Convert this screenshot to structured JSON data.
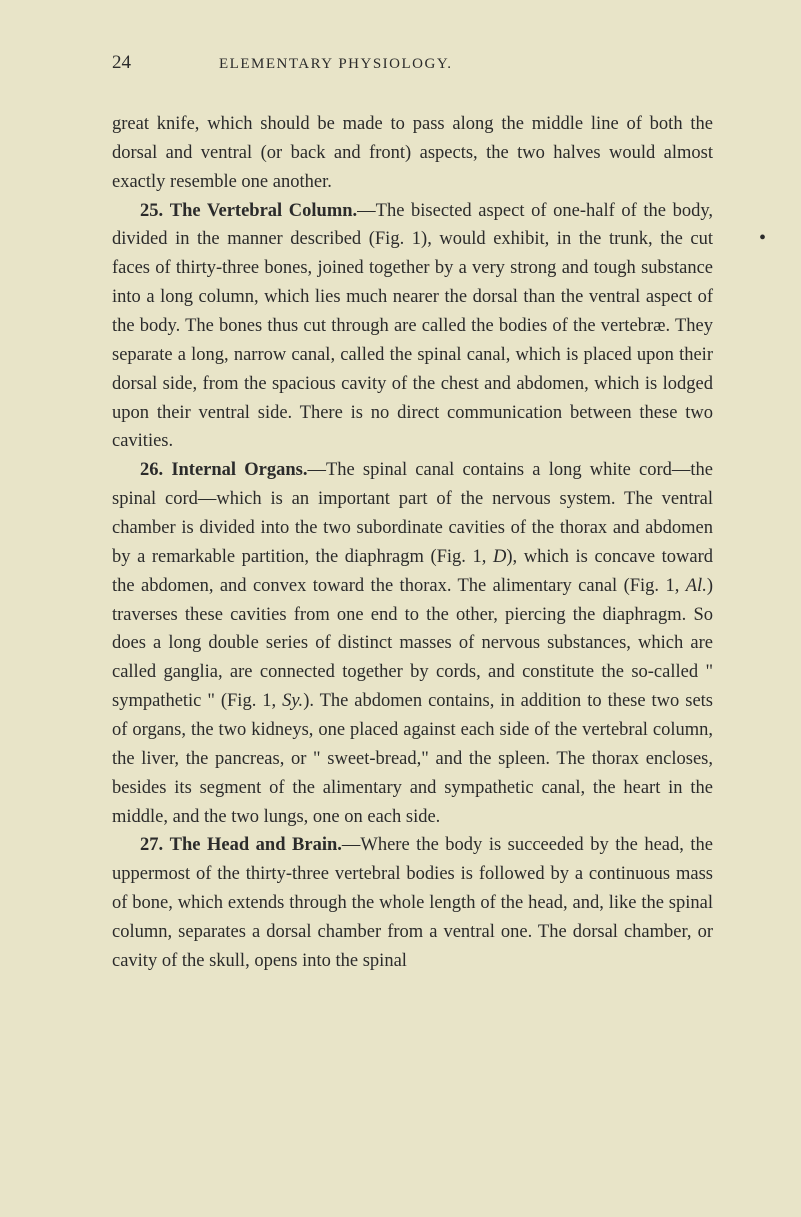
{
  "page": {
    "number": "24",
    "running_header": "ELEMENTARY PHYSIOLOGY.",
    "side_dot": "•",
    "paragraphs": {
      "p1": "great knife, which should be made to pass along the middle line of both the dorsal and ventral (or back and front) aspects, the two halves would almost exactly resemble one another.",
      "p2_num": "25.",
      "p2_title": "The Vertebral Column.",
      "p2_body": "—The bisected aspect of one-half of the body, divided in the manner described (Fig. 1), would exhibit, in the trunk, the cut faces of thirty-three bones, joined together by a very strong and tough substance into a long column, which lies much nearer the dorsal than the ventral aspect of the body. The bones thus cut through are called the bodies of the vertebræ. They separate a long, narrow canal, called the spinal canal, which is placed upon their dorsal side, from the spacious cavity of the chest and abdomen, which is lodged upon their ventral side. There is no direct communication between these two cavities.",
      "p3_num": "26.",
      "p3_title": "Internal Organs.",
      "p3_body_a": "—The spinal canal contains a long white cord—the spinal cord—which is an important part of the nervous system. The ventral chamber is divided into the two subordinate cavities of the thorax and abdomen by a remarkable partition, the diaphragm (Fig. 1, ",
      "p3_italic_d": "D",
      "p3_body_b": "), which is concave toward the abdomen, and convex toward the thorax. The alimentary canal (Fig. 1, ",
      "p3_italic_al": "Al.",
      "p3_body_c": ") traverses these cavities from one end to the other, piercing the diaphragm. So does a long double series of distinct masses of nervous substances, which are called ganglia, are connected together by cords, and constitute the so-called \" sympathetic \" (Fig. 1, ",
      "p3_italic_sy": "Sy.",
      "p3_body_d": "). The abdomen contains, in addition to these two sets of organs, the two kidneys, one placed against each side of the vertebral column, the liver, the pancreas, or \" sweet-bread,\" and the spleen. The thorax encloses, besides its segment of the alimentary and sympathetic canal, the heart in the middle, and the two lungs, one on each side.",
      "p4_num": "27.",
      "p4_title": "The Head and Brain.",
      "p4_body": "—Where the body is succeeded by the head, the uppermost of the thirty-three vertebral bodies is followed by a continuous mass of bone, which extends through the whole length of the head, and, like the spinal column, separates a dorsal chamber from a ventral one. The dorsal chamber, or cavity of the skull, opens into the spinal"
    }
  },
  "style": {
    "background_color": "#e8e4c8",
    "text_color": "#2b2b2b",
    "body_fontsize": 18.5,
    "header_fontsize": 15,
    "pagenum_fontsize": 19,
    "line_height": 1.56
  }
}
